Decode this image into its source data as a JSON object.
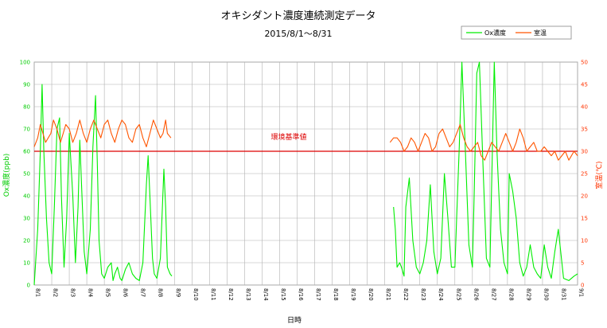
{
  "chart_data": {
    "type": "line",
    "title": "オキシダント濃度連続測定データ",
    "subtitle": "2015/8/1～8/31",
    "xlabel": "日時",
    "ylabel_left": "Ox濃度(ppb)",
    "ylabel_right": "室温(℃)",
    "ylim_left": [
      0,
      100
    ],
    "ylim_right": [
      0,
      50
    ],
    "left_ticks": [
      0,
      10,
      20,
      30,
      40,
      50,
      60,
      70,
      80,
      90,
      100
    ],
    "right_ticks": [
      0,
      5,
      10,
      15,
      20,
      25,
      30,
      35,
      40,
      45,
      50
    ],
    "x_tick_labels": [
      "8/1",
      "8/2",
      "8/3",
      "8/4",
      "8/5",
      "8/6",
      "8/7",
      "8/8",
      "8/9",
      "8/10",
      "8/11",
      "8/12",
      "8/13",
      "8/14",
      "8/15",
      "8/16",
      "8/17",
      "8/18",
      "8/19",
      "8/20",
      "8/21",
      "8/22",
      "8/23",
      "8/24",
      "8/25",
      "8/26",
      "8/27",
      "8/28",
      "8/29",
      "8/30",
      "8/31",
      "9/1"
    ],
    "grid": true,
    "legend": "top-right",
    "reference_line": {
      "label": "環境基準値",
      "value": 60,
      "axis": "left",
      "color": "#dd0000"
    },
    "series": [
      {
        "name": "Ox濃度",
        "axis": "left",
        "color": "#00ee00",
        "x": [
          0.0,
          0.2,
          0.35,
          0.45,
          0.55,
          0.7,
          0.85,
          1.0,
          1.15,
          1.3,
          1.45,
          1.55,
          1.7,
          1.85,
          2.0,
          2.2,
          2.35,
          2.5,
          2.6,
          2.7,
          2.85,
          3.0,
          3.2,
          3.35,
          3.5,
          3.6,
          3.7,
          3.85,
          4.0,
          4.2,
          4.4,
          4.5,
          4.6,
          4.75,
          4.9,
          5.0,
          5.2,
          5.4,
          5.6,
          5.8,
          6.0,
          6.2,
          6.4,
          6.5,
          6.6,
          6.75,
          6.85,
          7.0,
          7.2,
          7.4,
          7.5,
          7.6,
          7.75,
          7.85,
          null,
          20.5,
          20.6,
          20.7,
          20.85,
          20.95,
          21.1,
          21.2,
          21.4,
          21.6,
          21.8,
          22.0,
          22.2,
          22.4,
          22.6,
          22.8,
          23.0,
          23.2,
          23.4,
          23.6,
          23.8,
          24.0,
          24.1,
          24.25,
          24.4,
          24.6,
          24.8,
          25.0,
          25.1,
          25.25,
          25.4,
          25.6,
          25.8,
          26.0,
          26.1,
          26.25,
          26.4,
          26.6,
          26.8,
          27.0,
          27.1,
          27.3,
          27.5,
          27.7,
          27.9,
          28.1,
          28.3,
          28.5,
          28.7,
          28.9,
          29.1,
          29.3,
          29.5,
          29.7,
          29.9,
          30.2,
          30.5,
          30.8,
          31.0
        ],
        "values": [
          0,
          25,
          60,
          90,
          60,
          30,
          10,
          5,
          35,
          70,
          75,
          40,
          8,
          30,
          68,
          40,
          10,
          35,
          65,
          45,
          15,
          5,
          25,
          62,
          85,
          55,
          20,
          5,
          3,
          8,
          10,
          2,
          5,
          8,
          3,
          2,
          7,
          10,
          5,
          3,
          2,
          10,
          45,
          58,
          40,
          12,
          5,
          3,
          12,
          52,
          35,
          8,
          5,
          4,
          null,
          35,
          25,
          8,
          10,
          8,
          4,
          35,
          48,
          20,
          8,
          5,
          10,
          20,
          45,
          15,
          5,
          12,
          50,
          30,
          8,
          8,
          30,
          62,
          100,
          60,
          18,
          8,
          40,
          95,
          100,
          55,
          12,
          8,
          45,
          100,
          60,
          25,
          10,
          5,
          50,
          42,
          30,
          10,
          4,
          8,
          18,
          8,
          5,
          3,
          18,
          8,
          3,
          15,
          25,
          3,
          2,
          4,
          5
        ],
        "values_note": ""
      },
      {
        "name": "室温",
        "axis": "right",
        "color": "#ff5500",
        "x": [
          0.0,
          0.2,
          0.35,
          0.5,
          0.65,
          0.8,
          0.95,
          1.1,
          1.3,
          1.5,
          1.65,
          1.8,
          2.0,
          2.2,
          2.4,
          2.6,
          2.8,
          3.0,
          3.2,
          3.4,
          3.6,
          3.8,
          4.0,
          4.2,
          4.4,
          4.6,
          4.8,
          5.0,
          5.2,
          5.4,
          5.6,
          5.8,
          6.0,
          6.2,
          6.4,
          6.6,
          6.8,
          7.0,
          7.2,
          7.35,
          7.5,
          7.6,
          7.8,
          null,
          20.3,
          20.5,
          20.7,
          20.9,
          21.1,
          21.3,
          21.5,
          21.7,
          21.9,
          22.1,
          22.3,
          22.5,
          22.7,
          22.9,
          23.1,
          23.3,
          23.5,
          23.7,
          23.9,
          24.1,
          24.3,
          24.5,
          24.7,
          24.9,
          25.1,
          25.3,
          25.5,
          25.7,
          25.9,
          26.1,
          26.3,
          26.5,
          26.7,
          26.9,
          27.1,
          27.3,
          27.5,
          27.7,
          27.9,
          28.1,
          28.3,
          28.5,
          28.7,
          28.9,
          29.1,
          29.3,
          29.5,
          29.7,
          29.9,
          30.1,
          30.3,
          30.5,
          30.8,
          31.0
        ],
        "values": [
          31,
          33,
          36,
          34,
          32,
          33,
          34,
          37,
          35,
          32,
          34,
          36,
          35,
          32,
          34,
          37,
          34,
          32,
          35,
          37,
          35,
          33,
          36,
          37,
          34,
          32,
          35,
          37,
          36,
          33,
          32,
          35,
          36,
          33,
          31,
          34,
          37,
          35,
          33,
          34,
          37,
          34,
          33,
          null,
          32,
          33,
          33,
          32,
          30,
          31,
          33,
          32,
          30,
          32,
          34,
          33,
          30,
          31,
          34,
          35,
          33,
          31,
          32,
          34,
          36,
          33,
          31,
          30,
          31,
          32,
          29,
          28,
          30,
          32,
          31,
          30,
          32,
          34,
          32,
          30,
          32,
          35,
          33,
          30,
          31,
          32,
          30,
          30,
          31,
          30,
          29,
          30,
          28,
          29,
          30,
          28,
          30,
          29
        ]
      }
    ]
  }
}
